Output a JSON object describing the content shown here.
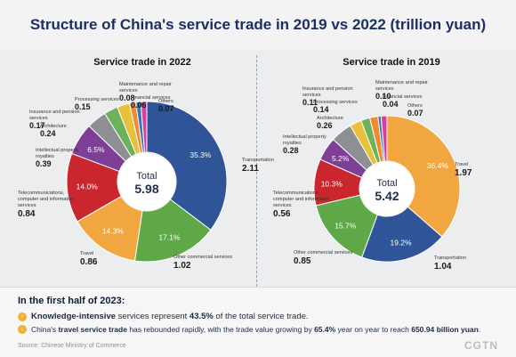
{
  "title": "Structure of China's service trade in 2019 vs 2022 (trillion yuan)",
  "chart_data": [
    {
      "type": "pie",
      "title": "Service trade in 2022",
      "total_label": "Total",
      "total_value": "5.98",
      "slices": [
        {
          "label": "Transportation",
          "value": "2.11",
          "percent": "35.3%",
          "share": 35.3,
          "color": "#2f5598"
        },
        {
          "label": "Other commercial services",
          "value": "1.02",
          "percent": "17.1%",
          "share": 17.1,
          "color": "#5ea847"
        },
        {
          "label": "Travel",
          "value": "0.86",
          "percent": "14.3%",
          "share": 14.3,
          "color": "#f2a640"
        },
        {
          "label": "Telecommunications, computer and information services",
          "value": "0.84",
          "percent": "14.0%",
          "share": 14.0,
          "color": "#c9262e"
        },
        {
          "label": "Intellectual property royalties",
          "value": "0.39",
          "percent": "6.5%",
          "share": 6.5,
          "color": "#7e3f96"
        },
        {
          "label": "Architecture",
          "value": "0.24",
          "percent": "",
          "share": 4.0,
          "color": "#8d8f93"
        },
        {
          "label": "Insurance and pension services",
          "value": "0.17",
          "percent": "",
          "share": 2.8,
          "color": "#6db25a"
        },
        {
          "label": "Processing services",
          "value": "0.15",
          "percent": "",
          "share": 2.5,
          "color": "#e8c13a"
        },
        {
          "label": "Maintenance and repair services",
          "value": "0.08",
          "percent": "",
          "share": 1.3,
          "color": "#f08a33"
        },
        {
          "label": "Financial services",
          "value": "0.06",
          "percent": "",
          "share": 1.0,
          "color": "#3d72b8"
        },
        {
          "label": "Others",
          "value": "0.07",
          "percent": "",
          "share": 1.2,
          "color": "#d9409e"
        }
      ]
    },
    {
      "type": "pie",
      "title": "Service trade in 2019",
      "total_label": "Total",
      "total_value": "5.42",
      "slices": [
        {
          "label": "Travel",
          "value": "1.97",
          "percent": "36.4%",
          "share": 36.4,
          "color": "#f2a640"
        },
        {
          "label": "Transportation",
          "value": "1.04",
          "percent": "19.2%",
          "share": 19.2,
          "color": "#2f5598"
        },
        {
          "label": "Other commercial services",
          "value": "0.85",
          "percent": "15.7%",
          "share": 15.7,
          "color": "#5ea847"
        },
        {
          "label": "Telecommunications, computer and information services",
          "value": "0.56",
          "percent": "10.3%",
          "share": 10.3,
          "color": "#c9262e"
        },
        {
          "label": "Intellectual property royalties",
          "value": "0.28",
          "percent": "5.2%",
          "share": 5.2,
          "color": "#7e3f96"
        },
        {
          "label": "Architecture",
          "value": "0.26",
          "percent": "",
          "share": 4.8,
          "color": "#8d8f93"
        },
        {
          "label": "Processing services",
          "value": "0.14",
          "percent": "",
          "share": 2.6,
          "color": "#e8c13a"
        },
        {
          "label": "Insurance and pension services",
          "value": "0.11",
          "percent": "",
          "share": 2.0,
          "color": "#6db25a"
        },
        {
          "label": "Maintenance and repair services",
          "value": "0.10",
          "percent": "",
          "share": 1.8,
          "color": "#f08a33"
        },
        {
          "label": "Financial services",
          "value": "0.04",
          "percent": "",
          "share": 0.7,
          "color": "#3d72b8"
        },
        {
          "label": "Others",
          "value": "0.07",
          "percent": "",
          "share": 1.3,
          "color": "#d9409e"
        }
      ]
    }
  ],
  "footer": {
    "headline": "In the first half of 2023:",
    "bullet1_bold": "Knowledge-intensive",
    "bullet1_text": " services represent ",
    "bullet1_value": "43.5%",
    "bullet1_tail": " of the total service trade.",
    "bullet2_pre": "China's ",
    "bullet2_bold": "travel service trade",
    "bullet2_mid": " has rebounded rapidly, with the trade value growing by ",
    "bullet2_value": "65.4%",
    "bullet2_mid2": " year on year to reach ",
    "bullet2_value2": "650.94 billion yuan",
    "bullet2_tail": ".",
    "source": "Source: Chinese Ministry of Commerce",
    "brand": "CGTN"
  }
}
